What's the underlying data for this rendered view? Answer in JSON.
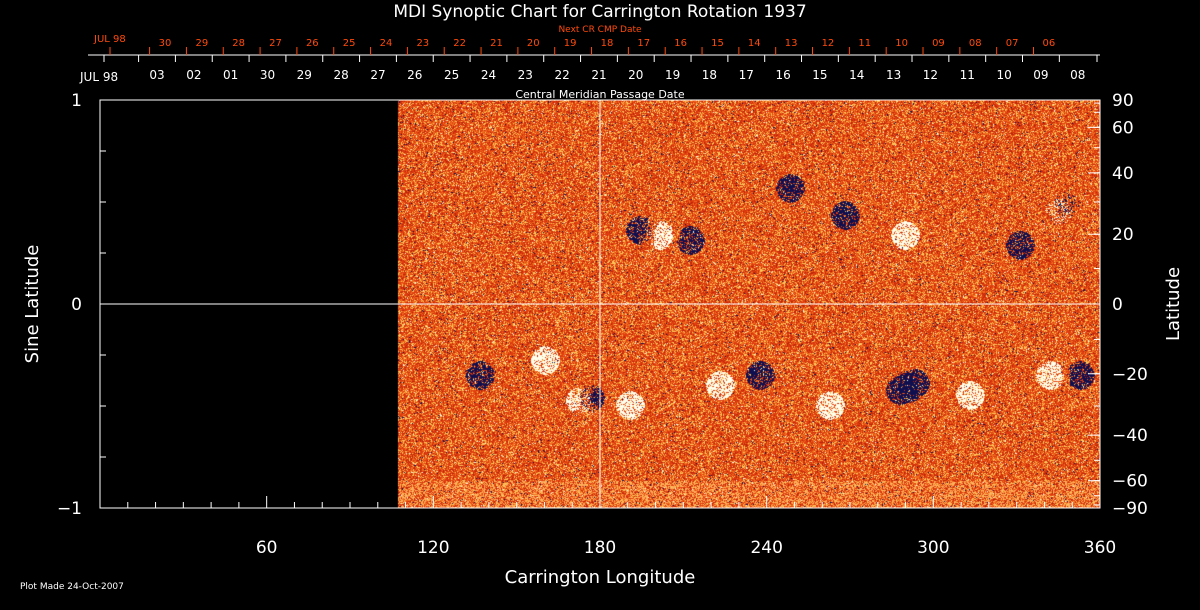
{
  "chart_data": {
    "type": "heatmap",
    "title": "MDI Synoptic Chart for Carrington Rotation 1937",
    "xlabel": "Carrington Longitude",
    "ylabel": "Sine Latitude",
    "y2label": "Latitude",
    "xlim": [
      0,
      360
    ],
    "ylim": [
      -1,
      1
    ],
    "x_ticks": [
      60,
      120,
      180,
      240,
      300,
      360
    ],
    "y_ticks": [
      1,
      0,
      -1
    ],
    "y_tick_labels": [
      "1",
      "0",
      "−1"
    ],
    "y2_ticks": [
      90,
      60,
      40,
      20,
      0,
      -20,
      -40,
      -60,
      -90
    ],
    "y2_tick_labels": [
      "90",
      "60",
      "40",
      "20",
      "0",
      "−20",
      "−40",
      "−60",
      "−90"
    ],
    "data_start_longitude": 107,
    "crosshair": {
      "longitude": 180,
      "sine_latitude": 0
    },
    "cmp_axis": {
      "label": "Central Meridian Passage Date",
      "month_label": "JUL 98",
      "dates": [
        "03",
        "02",
        "01",
        "30",
        "29",
        "28",
        "27",
        "26",
        "25",
        "24",
        "23",
        "22",
        "21",
        "20",
        "19",
        "18",
        "17",
        "16",
        "15",
        "14",
        "13",
        "12",
        "11",
        "10",
        "09",
        "08"
      ]
    },
    "next_cr_axis": {
      "label": "Next CR CMP Date",
      "month_label": "JUL 98",
      "dates": [
        "30",
        "29",
        "28",
        "27",
        "26",
        "25",
        "24",
        "23",
        "22",
        "21",
        "20",
        "19",
        "18",
        "17",
        "16",
        "15",
        "14",
        "13",
        "12",
        "11",
        "10",
        "09",
        "08",
        "07",
        "06"
      ]
    },
    "footer": "Plot Made 24-Oct-2007",
    "colors": {
      "background": "#000000",
      "field_base": "#e8420e",
      "positive": "#ffffff",
      "negative": "#0a0a50",
      "next_cr_axis": "#ff4a0a"
    }
  }
}
